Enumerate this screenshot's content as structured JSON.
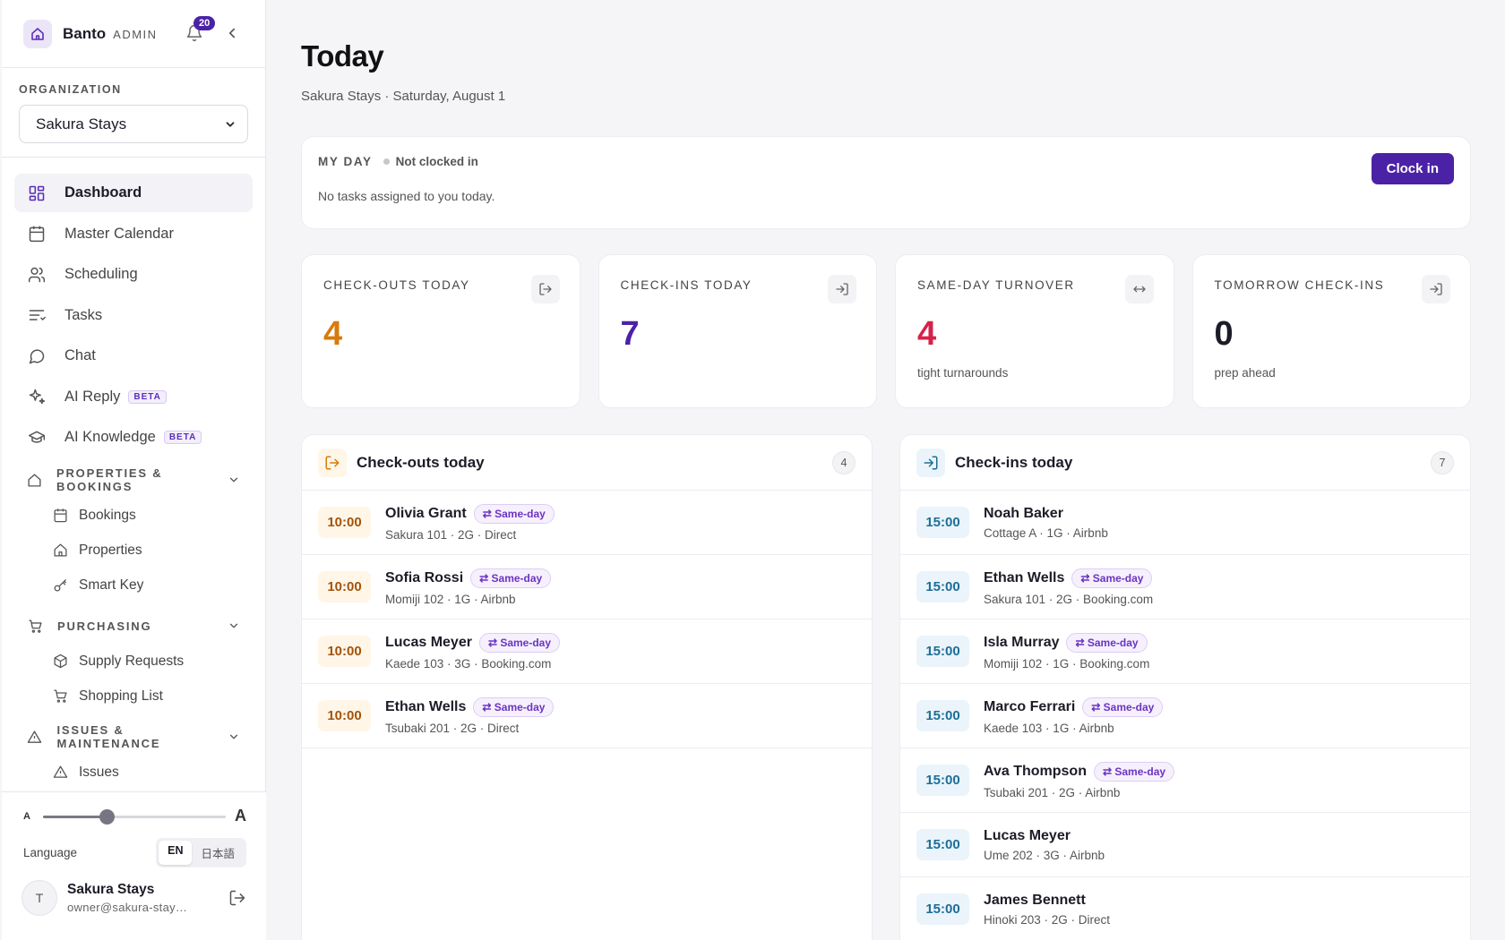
{
  "brand": {
    "name": "Banto",
    "tag": "ADMIN",
    "notifications": "20"
  },
  "org": {
    "label": "ORGANIZATION",
    "selected": "Sakura Stays"
  },
  "nav": {
    "items": [
      {
        "label": "Dashboard",
        "icon": "dashboard-icon",
        "active": true
      },
      {
        "label": "Master Calendar",
        "icon": "calendar-icon"
      },
      {
        "label": "Scheduling",
        "icon": "users-icon"
      },
      {
        "label": "Tasks",
        "icon": "tasks-icon"
      },
      {
        "label": "Chat",
        "icon": "chat-icon"
      },
      {
        "label": "AI Reply",
        "icon": "sparkle-icon",
        "badge": "BETA"
      },
      {
        "label": "AI Knowledge",
        "icon": "graduation-cap-icon",
        "badge": "BETA"
      }
    ],
    "sections": [
      {
        "label": "PROPERTIES & BOOKINGS",
        "icon": "home-icon",
        "items": [
          {
            "label": "Bookings",
            "icon": "calendar-icon"
          },
          {
            "label": "Properties",
            "icon": "home-icon"
          },
          {
            "label": "Smart Key",
            "icon": "key-icon"
          }
        ]
      },
      {
        "label": "PURCHASING",
        "icon": "cart-icon",
        "items": [
          {
            "label": "Supply Requests",
            "icon": "box-icon"
          },
          {
            "label": "Shopping List",
            "icon": "cart-icon"
          }
        ]
      },
      {
        "label": "ISSUES & MAINTENANCE",
        "icon": "warning-icon",
        "items": [
          {
            "label": "Issues",
            "icon": "warning-icon"
          }
        ]
      }
    ]
  },
  "font_size": {
    "small": "A",
    "large": "A",
    "level": 0.35
  },
  "language": {
    "label": "Language",
    "options": [
      "EN",
      "日本語"
    ],
    "selected": "EN"
  },
  "user": {
    "initial": "T",
    "name": "Sakura Stays",
    "email": "owner@sakura-stays.ex..."
  },
  "page": {
    "title": "Today",
    "subtitle": "Sakura Stays · Saturday, August 1"
  },
  "my_day": {
    "label": "MY DAY",
    "status": "Not clocked in",
    "message": "No tasks assigned to you today.",
    "button": "Clock in"
  },
  "stats": [
    {
      "label": "CHECK-OUTS TODAY",
      "value": "4",
      "sub": "",
      "color": "#d97a0c",
      "icon": "log-out-icon"
    },
    {
      "label": "CHECK-INS TODAY",
      "value": "7",
      "sub": "",
      "color": "#4b22a6",
      "icon": "log-in-icon"
    },
    {
      "label": "SAME-DAY TURNOVER",
      "value": "4",
      "sub": "tight turnarounds",
      "color": "#d6224a",
      "icon": "arrows-horizontal-icon"
    },
    {
      "label": "TOMORROW CHECK-INS",
      "value": "0",
      "sub": "prep ahead",
      "color": "#1c1c28",
      "icon": "log-in-icon"
    }
  ],
  "checkouts": {
    "title": "Check-outs today",
    "count": "4",
    "rows": [
      {
        "time": "10:00",
        "name": "Olivia Grant",
        "badge": "⇄ Same-day",
        "meta": "Sakura 101 · 2G · Direct"
      },
      {
        "time": "10:00",
        "name": "Sofia Rossi",
        "badge": "⇄ Same-day",
        "meta": "Momiji 102 · 1G · Airbnb"
      },
      {
        "time": "10:00",
        "name": "Lucas Meyer",
        "badge": "⇄ Same-day",
        "meta": "Kaede 103 · 3G · Booking.com"
      },
      {
        "time": "10:00",
        "name": "Ethan Wells",
        "badge": "⇄ Same-day",
        "meta": "Tsubaki 201 · 2G · Direct"
      }
    ]
  },
  "checkins": {
    "title": "Check-ins today",
    "count": "7",
    "rows": [
      {
        "time": "15:00",
        "name": "Noah Baker",
        "badge": "",
        "meta": "Cottage A · 1G · Airbnb"
      },
      {
        "time": "15:00",
        "name": "Ethan Wells",
        "badge": "⇄ Same-day",
        "meta": "Sakura 101 · 2G · Booking.com"
      },
      {
        "time": "15:00",
        "name": "Isla Murray",
        "badge": "⇄ Same-day",
        "meta": "Momiji 102 · 1G · Booking.com"
      },
      {
        "time": "15:00",
        "name": "Marco Ferrari",
        "badge": "⇄ Same-day",
        "meta": "Kaede 103 · 1G · Airbnb"
      },
      {
        "time": "15:00",
        "name": "Ava Thompson",
        "badge": "⇄ Same-day",
        "meta": "Tsubaki 201 · 2G · Airbnb"
      },
      {
        "time": "15:00",
        "name": "Lucas Meyer",
        "badge": "",
        "meta": "Ume 202 · 3G · Airbnb"
      },
      {
        "time": "15:00",
        "name": "James Bennett",
        "badge": "",
        "meta": "Hinoki 203 · 2G · Direct"
      }
    ]
  }
}
